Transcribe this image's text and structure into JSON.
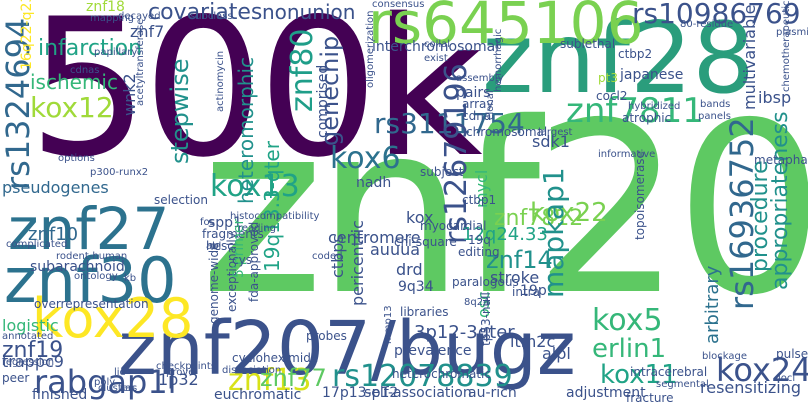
{
  "words": [
    {
      "text": "znf20",
      "color": "#5ec962"
    },
    {
      "text": "500k",
      "color": "#440154"
    },
    {
      "text": "znf28",
      "color": "#2a9d7c"
    },
    {
      "text": "znf207/bugz",
      "color": "#3b528b"
    },
    {
      "text": "rs645106",
      "color": "#7ad151"
    },
    {
      "text": "znf27",
      "color": "#2c728e"
    },
    {
      "text": "znf30",
      "color": "#2c728e"
    },
    {
      "text": "kox28",
      "color": "#fde725"
    },
    {
      "text": "rs1324694",
      "color": "#31688e"
    },
    {
      "text": "rs10986769",
      "color": "#3b528b"
    },
    {
      "text": "znf7811",
      "color": "#35b779"
    },
    {
      "text": "rs3111754",
      "color": "#31688e"
    },
    {
      "text": "rs12078839",
      "color": "#21918c"
    },
    {
      "text": "rs16936752",
      "color": "#31688e"
    },
    {
      "text": "rs12679196",
      "color": "#3b528b"
    },
    {
      "text": "rabgap1l",
      "color": "#3b528b"
    },
    {
      "text": "kox24",
      "color": "#3b528b"
    },
    {
      "text": "kox13",
      "color": "#20a386"
    },
    {
      "text": "kox12",
      "color": "#a0da39"
    },
    {
      "text": "kox6",
      "color": "#2c728e"
    },
    {
      "text": "kox22",
      "color": "#7ad151"
    },
    {
      "text": "kox5",
      "color": "#35b779"
    },
    {
      "text": "kox11",
      "color": "#20a386"
    },
    {
      "text": "znf13",
      "color": "#d8e219"
    },
    {
      "text": "znf80",
      "color": "#1f9e89"
    },
    {
      "text": "znf77",
      "color": "#5ec962"
    },
    {
      "text": "znf14",
      "color": "#21918c"
    },
    {
      "text": "znf7812",
      "color": "#7ad151"
    },
    {
      "text": "znf19",
      "color": "#3b528b"
    },
    {
      "text": "znf10",
      "color": "#31688e"
    },
    {
      "text": "znf7",
      "color": "#3b528b"
    },
    {
      "text": "znf18",
      "color": "#a0da39"
    },
    {
      "text": "mapkap1",
      "color": "#21918c"
    },
    {
      "text": "erlin1",
      "color": "#35b779"
    },
    {
      "text": "genechip",
      "color": "#3b528b"
    },
    {
      "text": "covariates",
      "color": "#3b528b"
    },
    {
      "text": "nonunion",
      "color": "#3b528b"
    },
    {
      "text": "heteromorphic",
      "color": "#21918c"
    },
    {
      "text": "stepwise",
      "color": "#21918c"
    },
    {
      "text": "infarction",
      "color": "#20a386"
    },
    {
      "text": "ischemic",
      "color": "#35b779"
    },
    {
      "text": "pseudogenes",
      "color": "#31688e"
    },
    {
      "text": "interchromosomal",
      "color": "#3b528b"
    },
    {
      "text": "multivariable",
      "color": "#3b528b"
    },
    {
      "text": "appropriateness",
      "color": "#21918c"
    },
    {
      "text": "procedure",
      "color": "#21918c"
    },
    {
      "text": "arbitrary",
      "color": "#2c728e"
    },
    {
      "text": "resensitizing",
      "color": "#3b528b"
    },
    {
      "text": "adjustment",
      "color": "#3b528b"
    },
    {
      "text": "finished",
      "color": "#3b528b"
    },
    {
      "text": "euchromatic",
      "color": "#3b528b"
    },
    {
      "text": "logistic",
      "color": "#35b779"
    },
    {
      "text": "peer",
      "color": "#3b528b"
    },
    {
      "text": "trappc9",
      "color": "#3b528b"
    },
    {
      "text": "itm2c",
      "color": "#3b528b"
    },
    {
      "text": "alpl",
      "color": "#3b528b"
    },
    {
      "text": "drd",
      "color": "#3b528b"
    },
    {
      "text": "9q34",
      "color": "#3b528b"
    },
    {
      "text": "stroke",
      "color": "#3b528b"
    },
    {
      "text": "12q24.33",
      "color": "#20a386"
    },
    {
      "text": "19q13.3-qter",
      "color": "#20a386"
    },
    {
      "text": "3p12-3qter",
      "color": "#3b528b"
    },
    {
      "text": "17p13-p12",
      "color": "#3b528b"
    },
    {
      "text": "16q22-q23",
      "color": "#fde725"
    },
    {
      "text": "1p32",
      "color": "#3b528b"
    },
    {
      "text": "19p",
      "color": "#3b528b"
    },
    {
      "text": "19q",
      "color": "#3b528b"
    },
    {
      "text": "ctbps",
      "color": "#3b528b"
    },
    {
      "text": "pericentric",
      "color": "#3b528b"
    },
    {
      "text": "centromere",
      "color": "#3b528b"
    },
    {
      "text": "mycl",
      "color": "#35b779"
    },
    {
      "text": "auuua",
      "color": "#3b528b"
    },
    {
      "text": "kox",
      "color": "#3b528b"
    },
    {
      "text": "nadh",
      "color": "#3b528b"
    },
    {
      "text": "spp1",
      "color": "#3b528b"
    },
    {
      "text": "wnk2",
      "color": "#3b528b"
    },
    {
      "text": "comprised",
      "color": "#3b528b"
    },
    {
      "text": "sdk1",
      "color": "#3b528b"
    },
    {
      "text": "ibsp",
      "color": "#3b528b"
    },
    {
      "text": "ctbp1",
      "color": "#3b528b"
    },
    {
      "text": "ctbp2",
      "color": "#3b528b"
    },
    {
      "text": "japanese",
      "color": "#3b528b"
    },
    {
      "text": "pt3",
      "color": "#a0da39"
    },
    {
      "text": "pairs",
      "color": "#3b528b"
    },
    {
      "text": "chromosomal",
      "color": "#3b528b"
    },
    {
      "text": "subarachnoid",
      "color": "#3b528b"
    },
    {
      "text": "overrepresentation",
      "color": "#3b528b"
    },
    {
      "text": "selection",
      "color": "#3b528b"
    },
    {
      "text": "fragments",
      "color": "#3b528b"
    },
    {
      "text": "myocardial",
      "color": "#3b528b"
    },
    {
      "text": "editing",
      "color": "#3b528b"
    },
    {
      "text": "osc",
      "color": "#35b779"
    },
    {
      "text": "prevalence",
      "color": "#3b528b"
    },
    {
      "text": "self-association",
      "color": "#3b528b"
    },
    {
      "text": "au-rich",
      "color": "#3b528b"
    },
    {
      "text": "fracture",
      "color": "#3b528b"
    },
    {
      "text": "subclass",
      "color": "#3b528b"
    },
    {
      "text": "decayed",
      "color": "#3b528b"
    },
    {
      "text": "mapping",
      "color": "#3b528b"
    },
    {
      "text": "consensus",
      "color": "#3b528b"
    },
    {
      "text": "80-residue",
      "color": "#3b528b"
    },
    {
      "text": "hybridized",
      "color": "#3b528b"
    },
    {
      "text": "atrophic",
      "color": "#3b528b"
    },
    {
      "text": "sublethal",
      "color": "#3b528b"
    },
    {
      "text": "assembly",
      "color": "#3b528b"
    },
    {
      "text": "probes",
      "color": "#3b528b"
    },
    {
      "text": "cdna",
      "color": "#3b528b"
    },
    {
      "text": "array",
      "color": "#3b528b"
    },
    {
      "text": "cocl2",
      "color": "#3b528b"
    },
    {
      "text": "metaphase",
      "color": "#3b528b"
    },
    {
      "text": "topoisomerase",
      "color": "#3b528b"
    },
    {
      "text": "heterochromatic",
      "color": "#3b528b"
    },
    {
      "text": "intracerebral",
      "color": "#3b528b"
    },
    {
      "text": "segmental",
      "color": "#3b528b"
    },
    {
      "text": "blockage",
      "color": "#3b528b"
    },
    {
      "text": "pulsed",
      "color": "#3b528b"
    },
    {
      "text": "loci",
      "color": "#3b528b"
    },
    {
      "text": "cycloheximide",
      "color": "#3b528b"
    },
    {
      "text": "genome-wide",
      "color": "#3b528b"
    },
    {
      "text": "exceptionally",
      "color": "#3b528b"
    },
    {
      "text": "fda-approved",
      "color": "#3b528b"
    },
    {
      "text": "clusters",
      "color": "#3b528b"
    },
    {
      "text": "regression",
      "color": "#3b528b"
    },
    {
      "text": "annotated",
      "color": "#3b528b"
    },
    {
      "text": "rodent-human",
      "color": "#3b528b"
    },
    {
      "text": "ontology",
      "color": "#3b528b"
    },
    {
      "text": "complicated",
      "color": "#3b528b"
    },
    {
      "text": "p300-runx2",
      "color": "#3b528b"
    },
    {
      "text": "options",
      "color": "#3b528b"
    },
    {
      "text": "cdnas",
      "color": "#3b528b"
    },
    {
      "text": "papillary",
      "color": "#3b528b"
    },
    {
      "text": "5'primer",
      "color": "#35b779"
    },
    {
      "text": "chi-square",
      "color": "#3b528b"
    },
    {
      "text": "paralogous",
      "color": "#3b528b"
    },
    {
      "text": "intra",
      "color": "#3b528b"
    },
    {
      "text": "libraries",
      "color": "#3b528b"
    },
    {
      "text": "mmp13",
      "color": "#3b528b"
    },
    {
      "text": "tp53-null",
      "color": "#3b528b"
    },
    {
      "text": "checkpoints",
      "color": "#3b528b"
    },
    {
      "text": "dissociation",
      "color": "#3b528b"
    },
    {
      "text": "hesc",
      "color": "#3b528b"
    },
    {
      "text": "cys",
      "color": "#3b528b"
    },
    {
      "text": "abl",
      "color": "#3b528b"
    },
    {
      "text": "8q24",
      "color": "#3b528b"
    },
    {
      "text": "kb",
      "color": "#3b528b"
    },
    {
      "text": "histocompatibility",
      "color": "#3b528b"
    },
    {
      "text": "informative",
      "color": "#3b528b"
    },
    {
      "text": "hemorrhagic",
      "color": "#3b528b"
    },
    {
      "text": "chemotherapeutics",
      "color": "#3b528b"
    },
    {
      "text": "acetyltransferase",
      "color": "#3b528b"
    },
    {
      "text": "actinomycin",
      "color": "#3b528b"
    },
    {
      "text": "oligomerization",
      "color": "#3b528b"
    },
    {
      "text": "subject",
      "color": "#3b528b"
    },
    {
      "text": "coded",
      "color": "#3b528b"
    },
    {
      "text": "sac",
      "color": "#3b528b"
    },
    {
      "text": "prove",
      "color": "#3b528b"
    },
    {
      "text": "poly",
      "color": "#3b528b"
    },
    {
      "text": "lie",
      "color": "#3b528b"
    },
    {
      "text": "fos",
      "color": "#3b528b"
    },
    {
      "text": "reading",
      "color": "#3b528b"
    },
    {
      "text": "bands",
      "color": "#3b528b"
    },
    {
      "text": "panels",
      "color": "#3b528b"
    },
    {
      "text": "plasmid",
      "color": "#3b528b"
    },
    {
      "text": "largest",
      "color": "#3b528b"
    },
    {
      "text": "clonal",
      "color": "#3b528b"
    },
    {
      "text": "collal",
      "color": "#3b528b"
    },
    {
      "text": "exist",
      "color": "#3b528b"
    }
  ]
}
